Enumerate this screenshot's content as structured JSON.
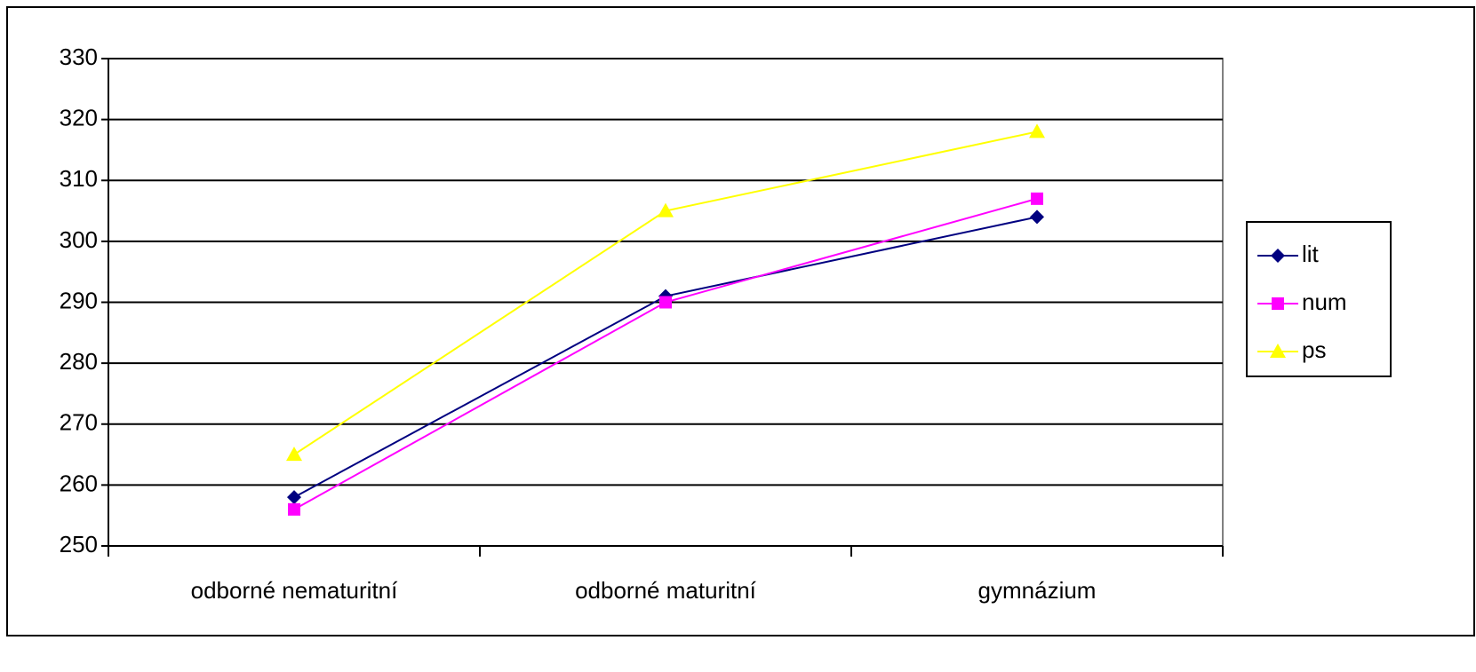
{
  "chart_data": {
    "type": "line",
    "categories": [
      "odborné nematuritní",
      "odborné maturitní",
      "gymnázium"
    ],
    "series": [
      {
        "name": "lit",
        "color": "#000080",
        "marker": "diamond",
        "values": [
          258,
          291,
          304
        ]
      },
      {
        "name": "num",
        "color": "#ff00ff",
        "marker": "square",
        "values": [
          256,
          290,
          307
        ]
      },
      {
        "name": "ps",
        "color": "#ffff00",
        "marker": "triangle",
        "values": [
          265,
          305,
          318
        ]
      }
    ],
    "ylim": [
      250,
      330
    ],
    "yticks": [
      250,
      260,
      270,
      280,
      290,
      300,
      310,
      320,
      330
    ],
    "grid": true,
    "legend": "right"
  }
}
